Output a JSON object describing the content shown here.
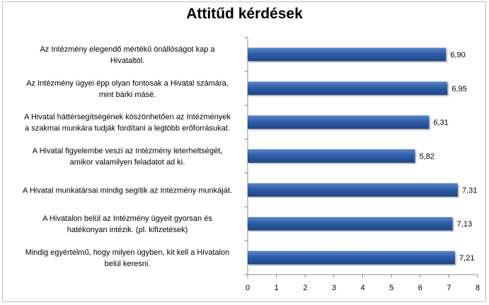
{
  "chart_data": {
    "type": "bar",
    "orientation": "horizontal",
    "title": "Attitűd kérdések",
    "categories": [
      [
        "Az Intézmény elegendő mértékű önállóságot kap a",
        "Hivataltól."
      ],
      [
        "Az Intézmény ügyei épp olyan fontosak  a Hivatal  számára,",
        "mint bárki másé."
      ],
      [
        "A Hivatal háttérsegítségének köszönhetően az Intézmények",
        "a szakmai munkára tudják fordítani a legtöbb erőforrásukat."
      ],
      [
        "A Hivatal figyelembe veszi az Intézmény leterheltségét,",
        "amikor valamilyen feladatot ad ki."
      ],
      [
        "A Hivatal munkatársai  mindig segítik az Intézmény munkáját."
      ],
      [
        "A Hivatalon belül az Intézmény ügyeit gyorsan és",
        "hatékonyan intézik. (pl. kifizetések)"
      ],
      [
        "Mindig egyértelmű, hogy milyen ügyben, kit kell a Hivatalon",
        "belül keresni."
      ]
    ],
    "values": [
      6.9,
      6.95,
      6.31,
      5.82,
      7.31,
      7.13,
      7.21
    ],
    "data_labels": [
      "6,90",
      "6,95",
      "6,31",
      "5,82",
      "7,31",
      "7,13",
      "7,21"
    ],
    "xlim": [
      0,
      8
    ],
    "x_ticks": [
      "0",
      "1",
      "2",
      "3",
      "4",
      "5",
      "6",
      "7",
      "8"
    ],
    "grid": false,
    "legend": "none",
    "bar_color": "#2f5da7"
  }
}
